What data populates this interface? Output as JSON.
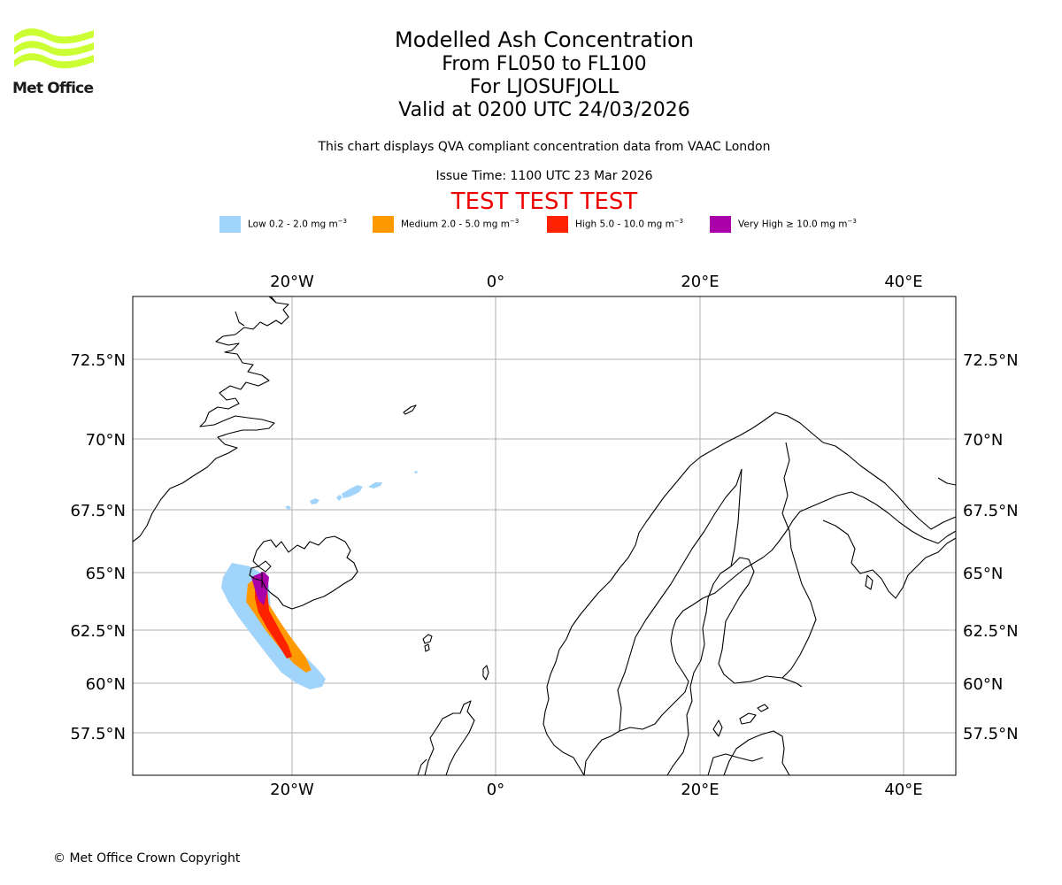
{
  "brand": {
    "name": "Met Office",
    "logo_color": "#ccff33"
  },
  "title": {
    "main": "Modelled Ash Concentration",
    "levels": "From FL050 to FL100",
    "volcano": "For LJOSUFJOLL",
    "valid": "Valid at 0200 UTC 24/03/2026"
  },
  "subtitle": "This chart displays QVA compliant concentration data from VAAC London",
  "issue_time": "Issue Time: 1100 UTC 23 Mar 2026",
  "test_banner": "TEST TEST TEST",
  "legend": [
    {
      "label_prefix": "Low 0.2 - 2.0 mg m",
      "label_exp": "−3",
      "color": "#a0d4fa"
    },
    {
      "label_prefix": "Medium 2.0 - 5.0 mg m",
      "label_exp": "−3",
      "color": "#ff9900"
    },
    {
      "label_prefix": "High 5.0 - 10.0 mg m",
      "label_exp": "−3",
      "color": "#ff2200"
    },
    {
      "label_prefix": "Very High  ≥  10.0 mg m",
      "label_exp": "−3",
      "color": "#aa00aa"
    }
  ],
  "map": {
    "lon_ticks": [
      "20°W",
      "0°",
      "20°E",
      "40°E"
    ],
    "lat_ticks": [
      "72.5°N",
      "70°N",
      "67.5°N",
      "65°N",
      "62.5°N",
      "60°N",
      "57.5°N"
    ],
    "grid_color": "#b0b0b0",
    "coast_color": "#000000"
  },
  "copyright": "© Met Office Crown Copyright"
}
